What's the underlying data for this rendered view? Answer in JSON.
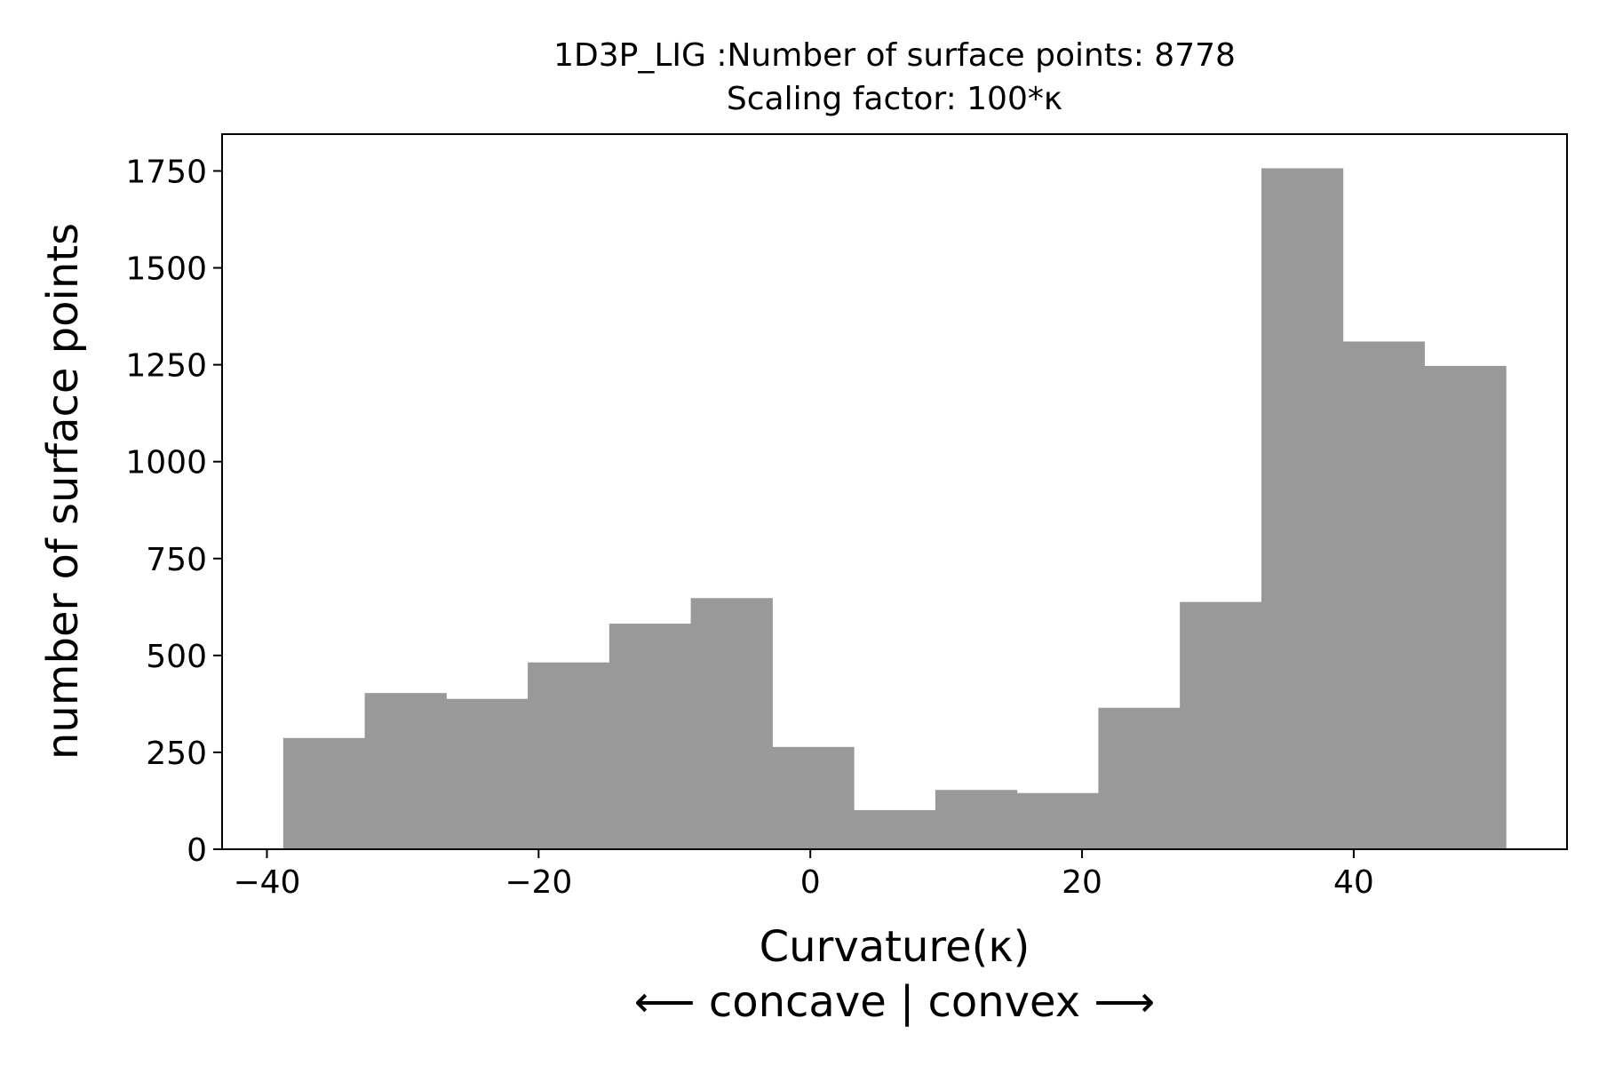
{
  "chart_data": {
    "type": "bar",
    "title": "1D3P_LIG :Number of surface points: 8778",
    "subtitle": "Scaling factor: 100*κ",
    "xlabel": "Curvature(κ)",
    "xlabel_line2": "⟵ concave | convex ⟶",
    "ylabel": "number of surface points",
    "xlim": [
      -43.3,
      55.7
    ],
    "ylim": [
      0,
      1845
    ],
    "xticks": [
      -40,
      -20,
      0,
      20,
      40
    ],
    "xtick_labels": [
      "−40",
      "−20",
      "0",
      "20",
      "40"
    ],
    "yticks": [
      0,
      250,
      500,
      750,
      1000,
      1250,
      1500,
      1750
    ],
    "ytick_labels": [
      "0",
      "250",
      "500",
      "750",
      "1000",
      "1250",
      "1500",
      "1750"
    ],
    "bin_edges": [
      -38.8,
      -32.8,
      -26.8,
      -20.8,
      -14.8,
      -8.8,
      -2.8,
      3.2,
      9.2,
      15.2,
      21.2,
      27.2,
      33.2,
      39.2,
      45.2,
      51.2
    ],
    "values": [
      287,
      403,
      388,
      482,
      582,
      648,
      264,
      101,
      153,
      145,
      365,
      638,
      1757,
      1310,
      1247
    ],
    "bar_color": "#999999",
    "grid": false,
    "legend": "none"
  }
}
